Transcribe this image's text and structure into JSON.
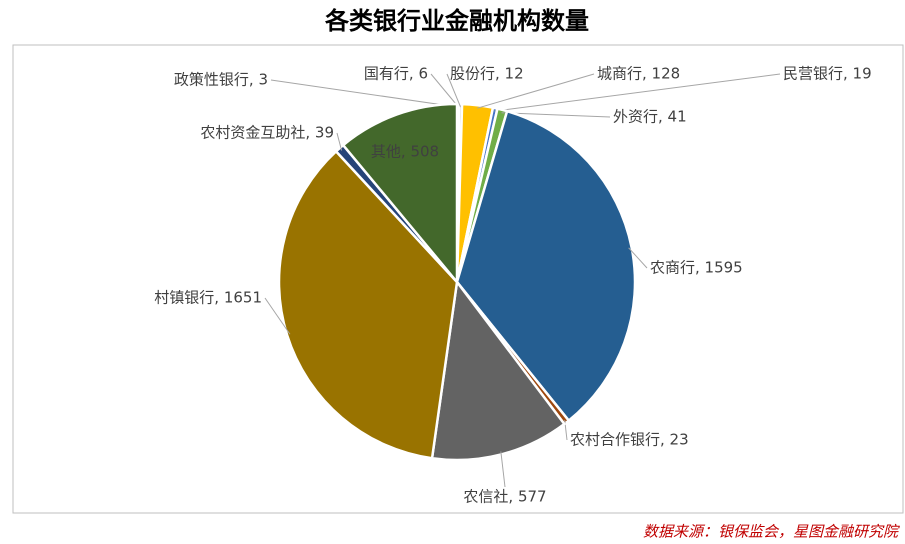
{
  "chart_data": {
    "type": "pie",
    "title": "各类银行业金融机构数量",
    "values": [
      3,
      6,
      12,
      128,
      19,
      41,
      1595,
      23,
      577,
      1651,
      39,
      508
    ],
    "value_labels": [
      "政策性银行, 3",
      "国有行, 6",
      "股份行, 12",
      "城商行, 128",
      "民营银行, 19",
      "外资行, 41",
      "农商行, 1595",
      "农村合作银行, 23",
      "农信社, 577",
      "村镇银行, 1651",
      "农村资金互助社, 39",
      "其他, 508"
    ],
    "colors": [
      "#5b9bd5",
      "#ed7d31",
      "#a5a5a5",
      "#ffc000",
      "#4472c4",
      "#70ad47",
      "#255e91",
      "#9e480e",
      "#636363",
      "#997300",
      "#264478",
      "#43682b"
    ],
    "source": "数据来源：银保监会，星图金融研究院"
  }
}
